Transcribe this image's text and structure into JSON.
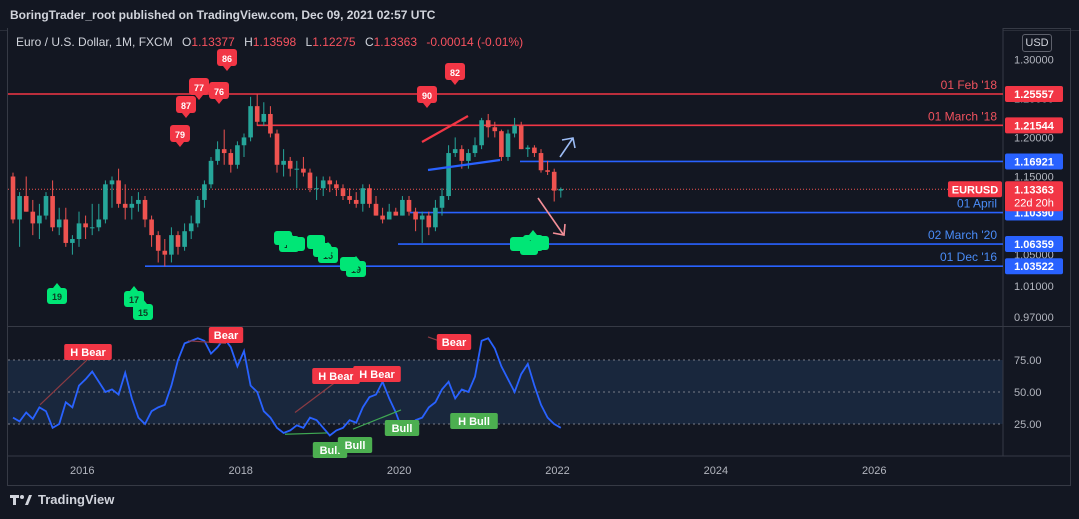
{
  "header": {
    "published": "BoringTrader_root published on TradingView.com, Dec 09, 2021 02:57 UTC"
  },
  "legend": {
    "symbol": "Euro / U.S. Dollar, 1M, FXCM",
    "o_label": "O",
    "o": "1.13377",
    "h_label": "H",
    "h": "1.13598",
    "l_label": "L",
    "l": "1.12275",
    "c_label": "C",
    "c": "1.13363",
    "change": "-0.00014 (-0.01%)"
  },
  "currency_button": "USD",
  "footer": {
    "brand": "TradingView"
  },
  "colors": {
    "bg": "#131722",
    "bull": "#26a69a",
    "bear": "#ef5350",
    "red_line": "#f23645",
    "blue_line": "#2962ff",
    "rsi": "#2962ff",
    "green_marker": "#00e676"
  },
  "chart_data": {
    "type": "candlestick",
    "price_axis": {
      "ticks": [
        "1.30000",
        "1.25000",
        "1.20000",
        "1.15000",
        "1.10000",
        "1.05000",
        "1.01000",
        "0.97000"
      ],
      "range": [
        0.96,
        1.34
      ]
    },
    "time_axis": {
      "ticks": [
        "2016",
        "2018",
        "2020",
        "2022",
        "2024",
        "2026"
      ]
    },
    "ohlc_monthly": [
      [
        1.15,
        1.155,
        1.09,
        1.095
      ],
      [
        1.095,
        1.13,
        1.06,
        1.125
      ],
      [
        1.125,
        1.15,
        1.105,
        1.105
      ],
      [
        1.105,
        1.12,
        1.075,
        1.09
      ],
      [
        1.09,
        1.115,
        1.07,
        1.1
      ],
      [
        1.1,
        1.13,
        1.095,
        1.125
      ],
      [
        1.125,
        1.145,
        1.08,
        1.085
      ],
      [
        1.085,
        1.11,
        1.075,
        1.095
      ],
      [
        1.095,
        1.11,
        1.06,
        1.065
      ],
      [
        1.065,
        1.075,
        1.05,
        1.07
      ],
      [
        1.07,
        1.105,
        1.06,
        1.09
      ],
      [
        1.09,
        1.1,
        1.07,
        1.085
      ],
      [
        1.085,
        1.115,
        1.075,
        1.085
      ],
      [
        1.085,
        1.115,
        1.08,
        1.095
      ],
      [
        1.095,
        1.145,
        1.09,
        1.14
      ],
      [
        1.14,
        1.15,
        1.11,
        1.145
      ],
      [
        1.145,
        1.16,
        1.11,
        1.115
      ],
      [
        1.115,
        1.14,
        1.095,
        1.11
      ],
      [
        1.11,
        1.125,
        1.095,
        1.115
      ],
      [
        1.115,
        1.13,
        1.105,
        1.12
      ],
      [
        1.12,
        1.125,
        1.085,
        1.095
      ],
      [
        1.095,
        1.1,
        1.06,
        1.075
      ],
      [
        1.075,
        1.08,
        1.04,
        1.055
      ],
      [
        1.055,
        1.07,
        1.035,
        1.05
      ],
      [
        1.05,
        1.085,
        1.04,
        1.075
      ],
      [
        1.075,
        1.08,
        1.05,
        1.06
      ],
      [
        1.06,
        1.09,
        1.055,
        1.08
      ],
      [
        1.08,
        1.1,
        1.07,
        1.09
      ],
      [
        1.09,
        1.125,
        1.085,
        1.12
      ],
      [
        1.12,
        1.145,
        1.11,
        1.14
      ],
      [
        1.14,
        1.175,
        1.135,
        1.17
      ],
      [
        1.17,
        1.195,
        1.165,
        1.185
      ],
      [
        1.185,
        1.21,
        1.165,
        1.18
      ],
      [
        1.18,
        1.185,
        1.155,
        1.165
      ],
      [
        1.165,
        1.195,
        1.16,
        1.19
      ],
      [
        1.19,
        1.205,
        1.175,
        1.2
      ],
      [
        1.2,
        1.252,
        1.195,
        1.24
      ],
      [
        1.24,
        1.255,
        1.215,
        1.22
      ],
      [
        1.22,
        1.245,
        1.215,
        1.23
      ],
      [
        1.23,
        1.24,
        1.2,
        1.205
      ],
      [
        1.205,
        1.21,
        1.155,
        1.165
      ],
      [
        1.165,
        1.185,
        1.15,
        1.17
      ],
      [
        1.17,
        1.175,
        1.15,
        1.16
      ],
      [
        1.16,
        1.17,
        1.135,
        1.16
      ],
      [
        1.16,
        1.175,
        1.15,
        1.155
      ],
      [
        1.155,
        1.16,
        1.13,
        1.135
      ],
      [
        1.135,
        1.15,
        1.12,
        1.135
      ],
      [
        1.135,
        1.15,
        1.125,
        1.145
      ],
      [
        1.145,
        1.15,
        1.13,
        1.14
      ],
      [
        1.14,
        1.145,
        1.125,
        1.135
      ],
      [
        1.135,
        1.14,
        1.12,
        1.125
      ],
      [
        1.125,
        1.135,
        1.115,
        1.12
      ],
      [
        1.12,
        1.13,
        1.11,
        1.115
      ],
      [
        1.115,
        1.14,
        1.105,
        1.135
      ],
      [
        1.135,
        1.14,
        1.11,
        1.115
      ],
      [
        1.115,
        1.125,
        1.1,
        1.1
      ],
      [
        1.1,
        1.11,
        1.09,
        1.095
      ],
      [
        1.095,
        1.115,
        1.095,
        1.105
      ],
      [
        1.105,
        1.11,
        1.1,
        1.1
      ],
      [
        1.1,
        1.125,
        1.1,
        1.12
      ],
      [
        1.12,
        1.125,
        1.1,
        1.105
      ],
      [
        1.105,
        1.11,
        1.08,
        1.095
      ],
      [
        1.095,
        1.105,
        1.065,
        1.1
      ],
      [
        1.1,
        1.105,
        1.075,
        1.085
      ],
      [
        1.085,
        1.12,
        1.08,
        1.11
      ],
      [
        1.11,
        1.135,
        1.1,
        1.125
      ],
      [
        1.125,
        1.19,
        1.12,
        1.18
      ],
      [
        1.18,
        1.2,
        1.175,
        1.185
      ],
      [
        1.185,
        1.19,
        1.16,
        1.17
      ],
      [
        1.17,
        1.185,
        1.16,
        1.18
      ],
      [
        1.18,
        1.2,
        1.175,
        1.19
      ],
      [
        1.19,
        1.225,
        1.185,
        1.222
      ],
      [
        1.222,
        1.23,
        1.2,
        1.213
      ],
      [
        1.213,
        1.22,
        1.2,
        1.208
      ],
      [
        1.208,
        1.21,
        1.17,
        1.175
      ],
      [
        1.175,
        1.21,
        1.17,
        1.205
      ],
      [
        1.205,
        1.225,
        1.2,
        1.215
      ],
      [
        1.215,
        1.22,
        1.185,
        1.185
      ],
      [
        1.185,
        1.19,
        1.175,
        1.187
      ],
      [
        1.187,
        1.19,
        1.175,
        1.18
      ],
      [
        1.18,
        1.185,
        1.155,
        1.158
      ],
      [
        1.158,
        1.17,
        1.152,
        1.156
      ],
      [
        1.156,
        1.16,
        1.118,
        1.132
      ],
      [
        1.132,
        1.136,
        1.123,
        1.134
      ]
    ],
    "horizontal_levels": [
      {
        "label": "01 Feb '18",
        "value": "1.25557",
        "color": "#f23645"
      },
      {
        "label": "01 March '18",
        "value": "1.21544",
        "color": "#f23645"
      },
      {
        "label": "",
        "value": "1.16921",
        "color": "#2962ff"
      },
      {
        "label": "01 April",
        "value": "1.10390",
        "color": "#2962ff"
      },
      {
        "label": "02 March '20",
        "value": "1.06359",
        "color": "#2962ff"
      },
      {
        "label": "01 Dec '16",
        "value": "1.03522",
        "color": "#2962ff"
      }
    ],
    "current_price": {
      "symbol": "EURUSD",
      "value": "1.13363",
      "countdown": "22d 20h"
    },
    "sell_markers": [
      {
        "label": "79",
        "month": 39
      },
      {
        "label": "87",
        "month": 42
      },
      {
        "label": "77",
        "month": 44
      },
      {
        "label": "76",
        "month": 49
      },
      {
        "label": "86",
        "month": 50
      },
      {
        "label": "90",
        "month": 82
      },
      {
        "label": "82",
        "month": 87
      }
    ],
    "buy_markers": [
      {
        "label": "19",
        "month": 0
      },
      {
        "label": "17",
        "month": 12
      },
      {
        "label": "15",
        "month": 13
      },
      {
        "label": "15",
        "month": 56
      },
      {
        "label": "15",
        "month": 62
      },
      {
        "label": "19",
        "month": 67
      },
      {
        "label": "17",
        "month": 101
      }
    ],
    "rsi": {
      "ticks": [
        "75.00",
        "50.00",
        "25.00"
      ],
      "range": [
        0,
        100
      ],
      "values": [
        30,
        27,
        34,
        29,
        38,
        35,
        22,
        25,
        42,
        38,
        55,
        60,
        66,
        58,
        50,
        52,
        48,
        65,
        45,
        30,
        25,
        35,
        38,
        40,
        55,
        75,
        88,
        90,
        92,
        90,
        80,
        85,
        92,
        85,
        70,
        82,
        55,
        50,
        35,
        30,
        22,
        18,
        20,
        24,
        22,
        30,
        28,
        22,
        16,
        20,
        22,
        28,
        26,
        38,
        46,
        48,
        58,
        45,
        34,
        20,
        21,
        28,
        30,
        38,
        42,
        52,
        58,
        45,
        52,
        50,
        62,
        90,
        92,
        84,
        70,
        60,
        50,
        64,
        72,
        55,
        40,
        30,
        25,
        22
      ],
      "labels": [
        {
          "text": "H Bear",
          "type": "bear"
        },
        {
          "text": "Bear",
          "type": "bear"
        },
        {
          "text": "H Bear",
          "type": "bear"
        },
        {
          "text": "H Bear",
          "type": "bear"
        },
        {
          "text": "Bear",
          "type": "bear"
        },
        {
          "text": "Bull",
          "type": "bull"
        },
        {
          "text": "Bull",
          "type": "bull"
        },
        {
          "text": "Bull",
          "type": "bull"
        },
        {
          "text": "H Bull",
          "type": "bull"
        }
      ]
    }
  }
}
